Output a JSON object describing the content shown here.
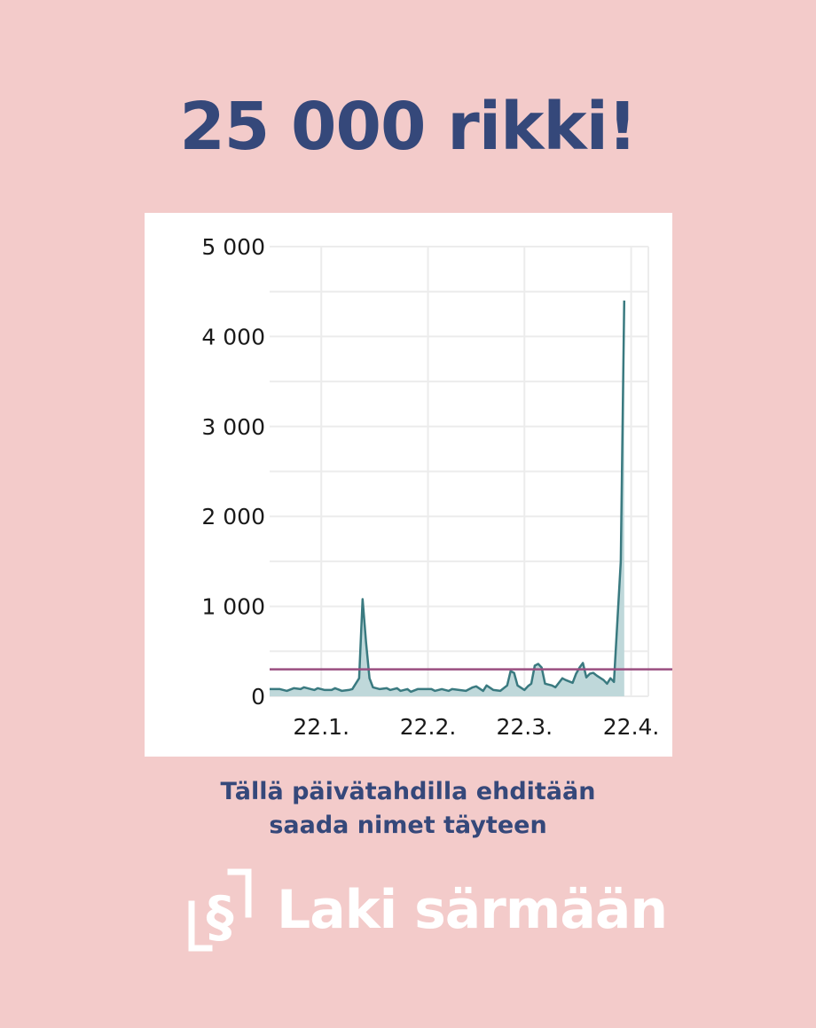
{
  "headline": "25 000 rikki!",
  "caption": {
    "line1": "Tällä päivätahdilla ehditään",
    "line2": "saada nimet täyteen"
  },
  "brand": {
    "name": "Laki särmään",
    "logo_symbol": "§",
    "logo_icon": "section-sign-logo-icon",
    "color": "#ffffff"
  },
  "colors": {
    "background": "#f3cbca",
    "headline": "#35487a",
    "line": "#3a7a80",
    "area_fill": "#bfd8da",
    "target_line": "#9a4e80"
  },
  "chart_data": {
    "type": "area",
    "x_start": "2022-01-07",
    "x_end": "2022-04-27",
    "xtick_labels": [
      "22.1.",
      "22.2.",
      "22.3.",
      "22.4."
    ],
    "xtick_dates": [
      "2022-01-22",
      "2022-02-22",
      "2022-03-22",
      "2022-04-22"
    ],
    "ytick_labels": [
      "5 000",
      "4 000",
      "3 000",
      "2 000",
      "1 000",
      "0"
    ],
    "ytick_values": [
      5000,
      4000,
      3000,
      2000,
      1000,
      0
    ],
    "ylim": [
      0,
      5000
    ],
    "grid": true,
    "reference_line": 300,
    "series": [
      {
        "points": [
          [
            "2022-01-07",
            80
          ],
          [
            "2022-01-10",
            80
          ],
          [
            "2022-01-12",
            60
          ],
          [
            "2022-01-14",
            90
          ],
          [
            "2022-01-16",
            80
          ],
          [
            "2022-01-17",
            100
          ],
          [
            "2022-01-19",
            80
          ],
          [
            "2022-01-20",
            70
          ],
          [
            "2022-01-21",
            90
          ],
          [
            "2022-01-23",
            70
          ],
          [
            "2022-01-24",
            70
          ],
          [
            "2022-01-25",
            70
          ],
          [
            "2022-01-26",
            90
          ],
          [
            "2022-01-28",
            60
          ],
          [
            "2022-01-30",
            70
          ],
          [
            "2022-01-31",
            80
          ],
          [
            "2022-02-02",
            200
          ],
          [
            "2022-02-03",
            1080
          ],
          [
            "2022-02-04",
            600
          ],
          [
            "2022-02-05",
            200
          ],
          [
            "2022-02-06",
            100
          ],
          [
            "2022-02-08",
            80
          ],
          [
            "2022-02-10",
            90
          ],
          [
            "2022-02-11",
            70
          ],
          [
            "2022-02-13",
            90
          ],
          [
            "2022-02-14",
            60
          ],
          [
            "2022-02-16",
            80
          ],
          [
            "2022-02-17",
            50
          ],
          [
            "2022-02-19",
            80
          ],
          [
            "2022-02-21",
            80
          ],
          [
            "2022-02-23",
            80
          ],
          [
            "2022-02-24",
            60
          ],
          [
            "2022-02-26",
            80
          ],
          [
            "2022-02-28",
            60
          ],
          [
            "2022-03-01",
            80
          ],
          [
            "2022-03-03",
            70
          ],
          [
            "2022-03-05",
            60
          ],
          [
            "2022-03-07",
            100
          ],
          [
            "2022-03-08",
            110
          ],
          [
            "2022-03-10",
            60
          ],
          [
            "2022-03-11",
            120
          ],
          [
            "2022-03-13",
            70
          ],
          [
            "2022-03-15",
            60
          ],
          [
            "2022-03-17",
            120
          ],
          [
            "2022-03-18",
            280
          ],
          [
            "2022-03-19",
            260
          ],
          [
            "2022-03-20",
            120
          ],
          [
            "2022-03-22",
            70
          ],
          [
            "2022-03-23",
            110
          ],
          [
            "2022-03-24",
            140
          ],
          [
            "2022-03-25",
            340
          ],
          [
            "2022-03-26",
            360
          ],
          [
            "2022-03-27",
            320
          ],
          [
            "2022-03-28",
            140
          ],
          [
            "2022-03-30",
            120
          ],
          [
            "2022-03-31",
            100
          ],
          [
            "2022-04-02",
            200
          ],
          [
            "2022-04-03",
            180
          ],
          [
            "2022-04-05",
            150
          ],
          [
            "2022-04-06",
            250
          ],
          [
            "2022-04-07",
            320
          ],
          [
            "2022-04-08",
            370
          ],
          [
            "2022-04-09",
            210
          ],
          [
            "2022-04-10",
            250
          ],
          [
            "2022-04-11",
            260
          ],
          [
            "2022-04-12",
            230
          ],
          [
            "2022-04-14",
            180
          ],
          [
            "2022-04-15",
            140
          ],
          [
            "2022-04-16",
            200
          ],
          [
            "2022-04-17",
            160
          ],
          [
            "2022-04-19",
            1500
          ],
          [
            "2022-04-20",
            4400
          ]
        ]
      }
    ]
  }
}
